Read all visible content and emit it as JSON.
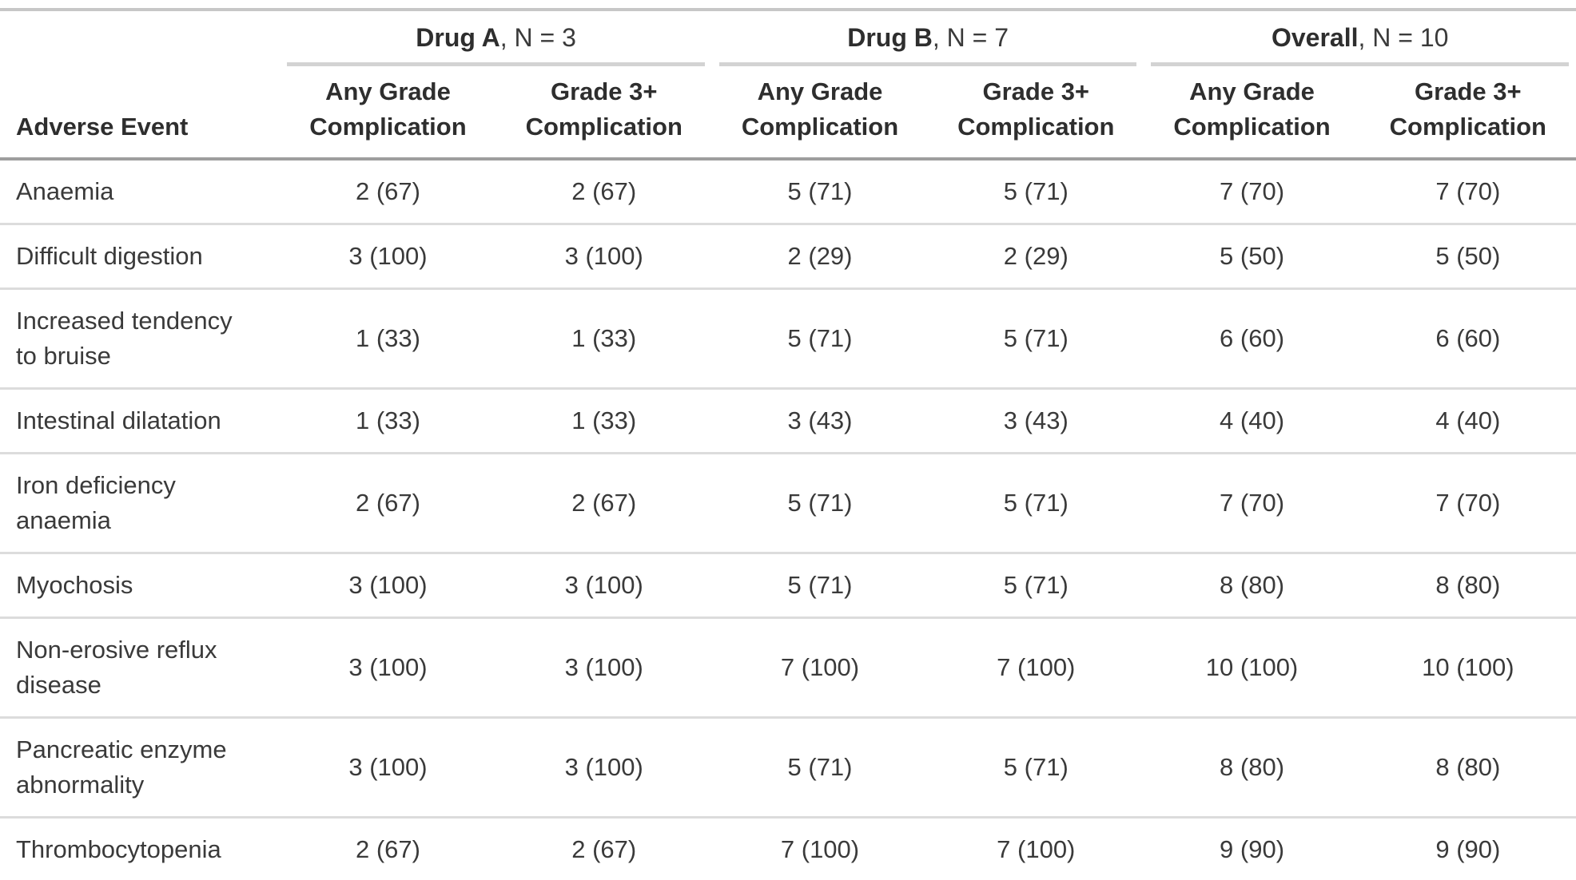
{
  "table": {
    "row_label_header": "Adverse Event",
    "spanners": [
      {
        "name": "Drug A",
        "suffix": ", N = 3"
      },
      {
        "name": "Drug B",
        "suffix": ", N = 7"
      },
      {
        "name": "Overall",
        "suffix": ", N = 10"
      }
    ],
    "sub_headers": [
      "Any Grade Complication",
      "Grade 3+ Complication",
      "Any Grade Complication",
      "Grade 3+ Complication",
      "Any Grade Complication",
      "Grade 3+ Complication"
    ],
    "rows": [
      {
        "label": "Anaemia",
        "values": [
          "2 (67)",
          "2 (67)",
          "5 (71)",
          "5 (71)",
          "7 (70)",
          "7 (70)"
        ]
      },
      {
        "label": "Difficult digestion",
        "values": [
          "3 (100)",
          "3 (100)",
          "2 (29)",
          "2 (29)",
          "5 (50)",
          "5 (50)"
        ]
      },
      {
        "label": "Increased tendency to bruise",
        "values": [
          "1 (33)",
          "1 (33)",
          "5 (71)",
          "5 (71)",
          "6 (60)",
          "6 (60)"
        ]
      },
      {
        "label": "Intestinal dilatation",
        "values": [
          "1 (33)",
          "1 (33)",
          "3 (43)",
          "3 (43)",
          "4 (40)",
          "4 (40)"
        ]
      },
      {
        "label": "Iron deficiency anaemia",
        "values": [
          "2 (67)",
          "2 (67)",
          "5 (71)",
          "5 (71)",
          "7 (70)",
          "7 (70)"
        ]
      },
      {
        "label": "Myochosis",
        "values": [
          "3 (100)",
          "3 (100)",
          "5 (71)",
          "5 (71)",
          "8 (80)",
          "8 (80)"
        ]
      },
      {
        "label": "Non-erosive reflux disease",
        "values": [
          "3 (100)",
          "3 (100)",
          "7 (100)",
          "7 (100)",
          "10 (100)",
          "10 (100)"
        ]
      },
      {
        "label": "Pancreatic enzyme abnormality",
        "values": [
          "3 (100)",
          "3 (100)",
          "5 (71)",
          "5 (71)",
          "8 (80)",
          "8 (80)"
        ]
      },
      {
        "label": "Thrombocytopenia",
        "values": [
          "2 (67)",
          "2 (67)",
          "7 (100)",
          "7 (100)",
          "9 (90)",
          "9 (90)"
        ]
      }
    ]
  },
  "colors": {
    "background": "#ffffff",
    "text_body": "#3a3a3a",
    "text_header": "#2e2e2e",
    "border_top": "#c7c7c7",
    "border_header_bottom": "#9e9e9e",
    "border_table_bottom": "#a3a3a3",
    "row_separator": "#dcdcdc",
    "spanner_underline": "#d3d3d3"
  }
}
